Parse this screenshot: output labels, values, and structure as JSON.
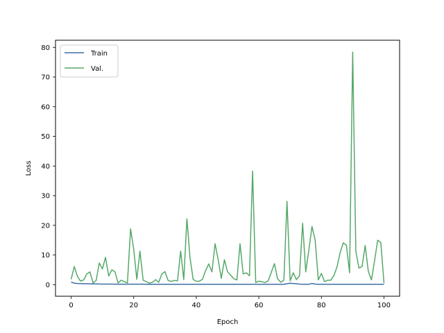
{
  "chart_data": {
    "type": "line",
    "xlabel": "Epoch",
    "ylabel": "Loss",
    "xlim": [
      -5,
      105
    ],
    "ylim": [
      -3.9,
      82.4
    ],
    "xticks": [
      0,
      20,
      40,
      60,
      80,
      100
    ],
    "yticks": [
      0,
      10,
      20,
      30,
      40,
      50,
      60,
      70,
      80
    ],
    "grid": false,
    "legend_position": "top-left",
    "x": [
      0,
      1,
      2,
      3,
      4,
      5,
      6,
      7,
      8,
      9,
      10,
      11,
      12,
      13,
      14,
      15,
      16,
      17,
      18,
      19,
      20,
      21,
      22,
      23,
      24,
      25,
      26,
      27,
      28,
      29,
      30,
      31,
      32,
      33,
      34,
      35,
      36,
      37,
      38,
      39,
      40,
      41,
      42,
      43,
      44,
      45,
      46,
      47,
      48,
      49,
      50,
      51,
      52,
      53,
      54,
      55,
      56,
      57,
      58,
      59,
      60,
      61,
      62,
      63,
      64,
      65,
      66,
      67,
      68,
      69,
      70,
      71,
      72,
      73,
      74,
      75,
      76,
      77,
      78,
      79,
      80,
      81,
      82,
      83,
      84,
      85,
      86,
      87,
      88,
      89,
      90,
      91,
      92,
      93,
      94,
      95,
      96,
      97,
      98,
      99,
      100
    ],
    "series": [
      {
        "name": "Train",
        "color": "#3b6ea5",
        "values": [
          0.9,
          0.5,
          0.4,
          0.35,
          0.3,
          0.3,
          0.28,
          0.25,
          0.25,
          0.22,
          0.2,
          0.2,
          0.2,
          0.2,
          0.18,
          0.18,
          0.18,
          0.18,
          0.17,
          0.17,
          0.17,
          0.16,
          0.16,
          0.16,
          0.15,
          0.15,
          0.15,
          0.15,
          0.15,
          0.15,
          0.15,
          0.14,
          0.14,
          0.14,
          0.14,
          0.14,
          0.14,
          0.14,
          0.14,
          0.14,
          0.13,
          0.13,
          0.13,
          0.13,
          0.13,
          0.13,
          0.13,
          0.12,
          0.12,
          0.12,
          0.12,
          0.12,
          0.12,
          0.12,
          0.12,
          0.12,
          0.12,
          0.12,
          0.12,
          0.12,
          0.12,
          0.12,
          0.12,
          0.12,
          0.12,
          0.12,
          0.12,
          0.12,
          0.12,
          0.3,
          0.5,
          0.4,
          0.3,
          0.2,
          0.15,
          0.15,
          0.15,
          0.4,
          0.2,
          0.15,
          0.15,
          0.15,
          0.15,
          0.15,
          0.15,
          0.15,
          0.15,
          0.15,
          0.15,
          0.15,
          0.12,
          0.12,
          0.12,
          0.12,
          0.12,
          0.12,
          0.12,
          0.12,
          0.12,
          0.12,
          0.12
        ]
      },
      {
        "name": "Val.",
        "color": "#55a868",
        "values": [
          1.8,
          6.1,
          2.8,
          1.2,
          1.6,
          3.6,
          4.3,
          0.6,
          1.4,
          7.3,
          5.3,
          9.2,
          2.9,
          5.0,
          4.3,
          0.6,
          1.5,
          1.0,
          0.6,
          18.8,
          12.0,
          1.8,
          11.3,
          1.5,
          1.0,
          0.5,
          0.8,
          1.7,
          0.8,
          3.6,
          4.4,
          1.4,
          1.1,
          1.4,
          1.3,
          11.3,
          1.7,
          22.2,
          9.1,
          1.8,
          1.1,
          1.2,
          1.8,
          4.8,
          7.0,
          4.3,
          13.8,
          8.4,
          2.1,
          8.4,
          4.3,
          3.2,
          2.0,
          1.6,
          13.8,
          3.6,
          4.0,
          3.0,
          38.3,
          0.7,
          1.2,
          1.0,
          0.7,
          1.3,
          4.2,
          7.1,
          2.0,
          0.8,
          1.5,
          28.1,
          1.3,
          4.0,
          1.7,
          3.0,
          20.7,
          4.3,
          11.7,
          19.6,
          15.0,
          1.6,
          3.8,
          1.0,
          1.5,
          1.5,
          3.1,
          6.0,
          10.8,
          14.1,
          13.3,
          4.0,
          78.4,
          11.3,
          5.6,
          6.1,
          13.2,
          4.5,
          1.6,
          8.0,
          15.0,
          14.2,
          0.5
        ]
      }
    ]
  }
}
